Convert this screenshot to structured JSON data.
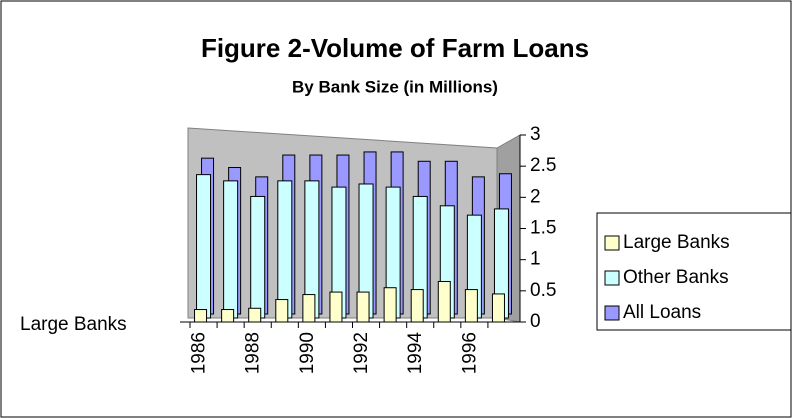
{
  "chart_data": {
    "type": "bar3d",
    "title": "Figure 2-Volume of Farm Loans",
    "subtitle": "By Bank Size (in Millions)",
    "depth_label": "Large Banks",
    "categories": [
      "1986",
      null,
      "1988",
      null,
      "1990",
      null,
      "1992",
      null,
      "1994",
      null,
      "1996",
      null
    ],
    "series": [
      {
        "name": "Large Banks",
        "color": "#ffffcc",
        "values": [
          0.2,
          0.2,
          0.22,
          0.36,
          0.44,
          0.48,
          0.48,
          0.55,
          0.52,
          0.65,
          0.52,
          0.45
        ]
      },
      {
        "name": "Other Banks",
        "color": "#ccffff",
        "values": [
          2.3,
          2.2,
          1.95,
          2.2,
          2.2,
          2.1,
          2.15,
          2.1,
          1.95,
          1.8,
          1.65,
          1.75
        ]
      },
      {
        "name": "All Loans",
        "color": "#9999ff",
        "values": [
          2.5,
          2.35,
          2.2,
          2.55,
          2.55,
          2.55,
          2.6,
          2.6,
          2.45,
          2.45,
          2.2,
          2.25
        ]
      }
    ],
    "ylim": [
      0,
      3
    ],
    "yticks": [
      0,
      0.5,
      1,
      1.5,
      2,
      2.5,
      3
    ]
  }
}
